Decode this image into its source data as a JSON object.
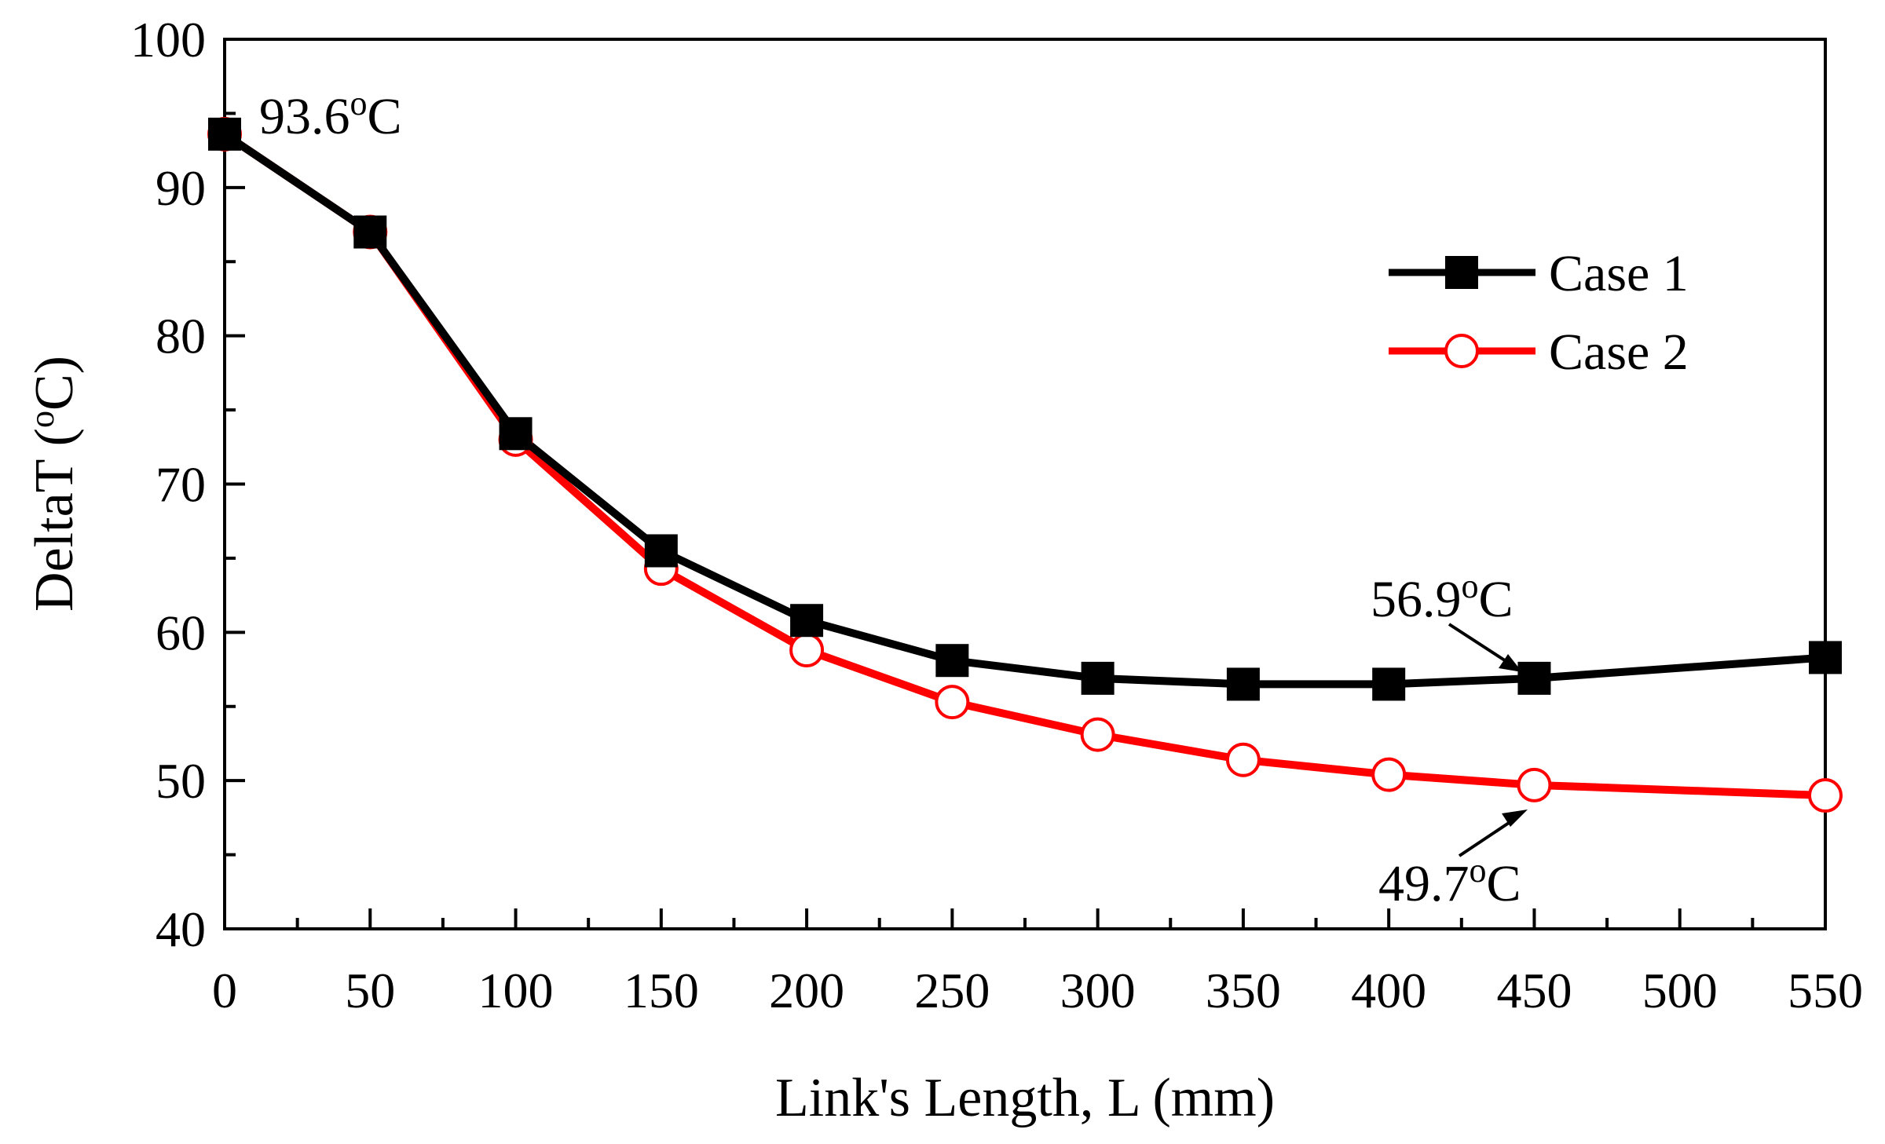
{
  "chart_data": {
    "type": "line",
    "xlabel": "Link's Length, L (mm)",
    "ylabel": {
      "prefix": "DeltaT (",
      "superscript": "o",
      "suffix": "C)"
    },
    "xlim": [
      0,
      550
    ],
    "ylim": [
      40,
      100
    ],
    "x_ticks": [
      "0",
      "50",
      "100",
      "150",
      "200",
      "250",
      "300",
      "350",
      "400",
      "450",
      "500",
      "550"
    ],
    "x_tick_values": [
      0,
      50,
      100,
      150,
      200,
      250,
      300,
      350,
      400,
      450,
      500,
      550
    ],
    "y_ticks": [
      "40",
      "50",
      "60",
      "70",
      "80",
      "90",
      "100"
    ],
    "y_tick_values": [
      40,
      50,
      60,
      70,
      80,
      90,
      100
    ],
    "legend_position": "top-right",
    "grid": false,
    "series": [
      {
        "name": "Case 1",
        "color": "#000000",
        "marker": "filled-square",
        "x": [
          0,
          50,
          100,
          150,
          200,
          250,
          300,
          350,
          400,
          450,
          550
        ],
        "y": [
          93.6,
          87.0,
          73.4,
          65.5,
          60.8,
          58.1,
          56.9,
          56.5,
          56.5,
          56.9,
          58.3
        ]
      },
      {
        "name": "Case 2",
        "color": "#ff0000",
        "marker": "open-circle",
        "x": [
          0,
          50,
          100,
          150,
          200,
          250,
          300,
          350,
          400,
          450,
          550
        ],
        "y": [
          93.6,
          87.0,
          73.0,
          64.3,
          58.8,
          55.3,
          53.1,
          51.4,
          50.4,
          49.7,
          49.0
        ]
      }
    ],
    "annotations": [
      {
        "value": "93.6",
        "sup": "o",
        "unit": "C"
      },
      {
        "value": "56.9",
        "sup": "o",
        "unit": "C"
      },
      {
        "value": "49.7",
        "sup": "o",
        "unit": "C"
      }
    ]
  }
}
